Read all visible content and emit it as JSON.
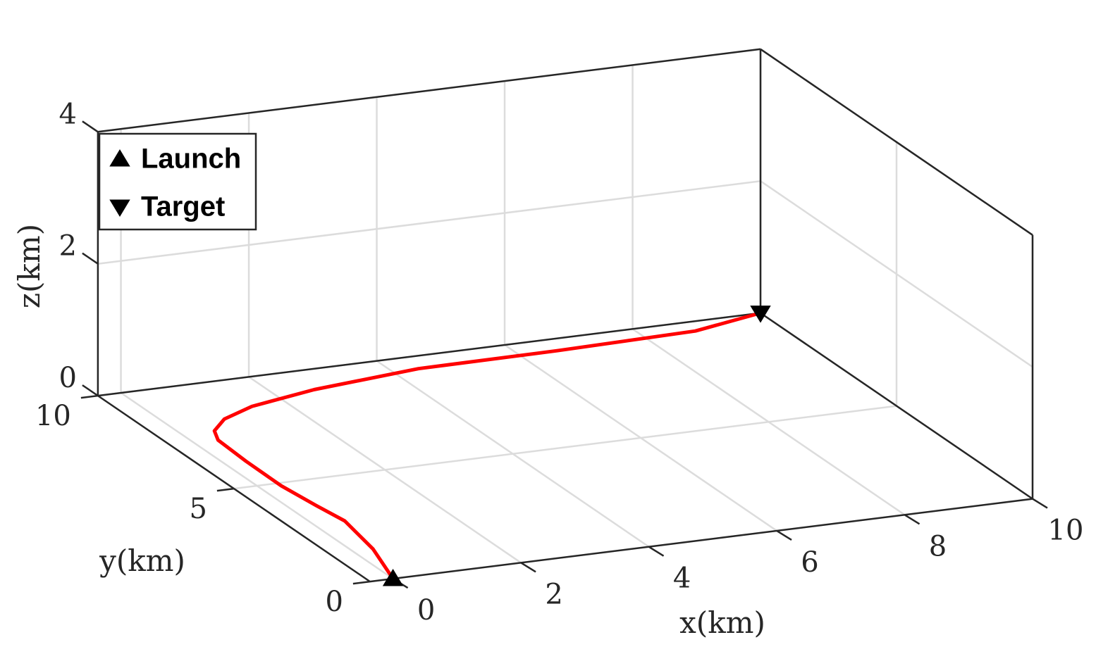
{
  "chart_data": {
    "type": "line3d",
    "xlabel": "x(km)",
    "ylabel": "y(km)",
    "zlabel": "z(km)",
    "xlim": [
      -0.36,
      10
    ],
    "ylim": [
      0,
      10
    ],
    "zlim": [
      0,
      4
    ],
    "xticks": [
      0,
      2,
      4,
      6,
      8,
      10
    ],
    "yticks": [
      0,
      5,
      10
    ],
    "zticks": [
      0,
      2,
      4
    ],
    "grid": true,
    "legend": "upper left",
    "series": [
      {
        "color": "#ff0000",
        "x": [
          0,
          0.31,
          0.48,
          0.4,
          0.32,
          0.33,
          0.37,
          0.5,
          0.86,
          1.47,
          2.62,
          4.4,
          6.59,
          8.79,
          10
        ],
        "y": [
          0,
          1.46,
          2.9,
          3.76,
          4.86,
          6.18,
          7.3,
          7.74,
          8.22,
          8.64,
          9.05,
          9.41,
          9.44,
          9.55,
          10
        ],
        "z": [
          0,
          0,
          0,
          0,
          0,
          0,
          0,
          0,
          0,
          0,
          0,
          0,
          0,
          0,
          0
        ]
      },
      {
        "name": "Launch",
        "marker": "triangle-up",
        "color": "#000000",
        "x": [
          0
        ],
        "y": [
          0
        ],
        "z": [
          0
        ]
      },
      {
        "name": "Target",
        "marker": "triangle-down",
        "color": "#000000",
        "x": [
          10
        ],
        "y": [
          10
        ],
        "z": [
          0
        ]
      }
    ]
  }
}
